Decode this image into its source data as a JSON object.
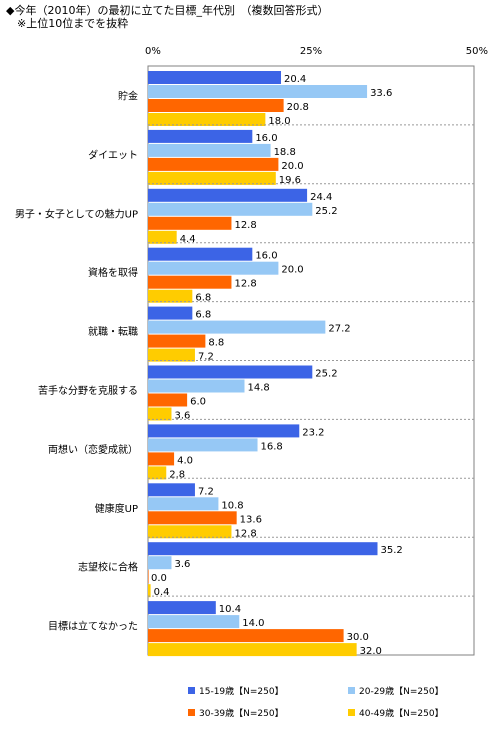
{
  "title": {
    "line1": "◆今年（2010年）の最初に立てた目標_年代別　（複数回答形式）",
    "line2": "　※上位10位までを抜粋"
  },
  "chart_data": {
    "type": "bar",
    "orientation": "horizontal",
    "xlim": [
      0,
      50
    ],
    "ticks": [
      "0%",
      "25%",
      "50%"
    ],
    "grid": true,
    "legend_position": "bottom",
    "categories": [
      "貯金",
      "ダイエット",
      "男子・女子としての魅力UP",
      "資格を取得",
      "就職・転職",
      "苦手な分野を克服する",
      "両想い（恋愛成就）",
      "健康度UP",
      "志望校に合格",
      "目標は立てなかった"
    ],
    "series": [
      {
        "name": "15-19歳【N=250】",
        "color": "#3c64e6",
        "values": [
          20.4,
          16.0,
          24.4,
          16.0,
          6.8,
          25.2,
          23.2,
          7.2,
          35.2,
          10.4
        ]
      },
      {
        "name": "20-29歳【N=250】",
        "color": "#96c8f5",
        "values": [
          33.6,
          18.8,
          25.2,
          20.0,
          27.2,
          14.8,
          16.8,
          10.8,
          3.6,
          14.0
        ]
      },
      {
        "name": "30-39歳【N=250】",
        "color": "#ff6600",
        "values": [
          20.8,
          20.0,
          12.8,
          12.8,
          8.8,
          6.0,
          4.0,
          13.6,
          0.0,
          30.0
        ]
      },
      {
        "name": "40-49歳【N=250】",
        "color": "#ffcc00",
        "values": [
          18.0,
          19.6,
          4.4,
          6.8,
          7.2,
          3.6,
          2.8,
          12.8,
          0.4,
          32.0
        ]
      }
    ]
  }
}
